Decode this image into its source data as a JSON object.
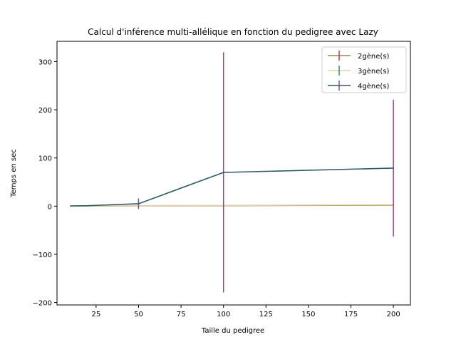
{
  "chart_data": {
    "type": "line",
    "title": "Calcul d'inférence multi-allélique en fonction du pedigree avec Lazy",
    "xlabel": "Taille du pedigree",
    "ylabel": "Temps en sec",
    "xlim": [
      2,
      210
    ],
    "ylim": [
      -205,
      342
    ],
    "xticks": [
      25,
      50,
      75,
      100,
      125,
      150,
      175,
      200
    ],
    "yticks": [
      -200,
      -100,
      0,
      100,
      200,
      300
    ],
    "grid": false,
    "legend_position": "top-right",
    "series": [
      {
        "name": "2gène(s)",
        "color": "#9c8a4a",
        "errorbar_color": "#b03a5b",
        "x": [
          10,
          20,
          50,
          100,
          200
        ],
        "y": [
          0.1,
          0.2,
          0.5,
          1.0,
          2.0
        ],
        "err": [
          0.05,
          0.1,
          0.3,
          0.5,
          1.0
        ]
      },
      {
        "name": "3gène(s)",
        "color": "#e3cfb0",
        "errorbar_color": "#2f8f7a",
        "x": [
          10,
          20,
          50,
          100,
          200
        ],
        "y": [
          0.2,
          0.5,
          1.0,
          1.5,
          3.0
        ],
        "err": [
          0.1,
          0.2,
          0.5,
          0.8,
          1.5
        ]
      },
      {
        "name": "4gène(s)",
        "color": "#2b5a66",
        "errorbar_color": "#8e4a7f",
        "x": [
          10,
          20,
          50,
          100,
          200
        ],
        "y": [
          0.5,
          1.0,
          5.0,
          70.0,
          79.0
        ],
        "err": [
          0.5,
          1.0,
          11.0,
          249.0,
          142.0
        ]
      }
    ]
  }
}
